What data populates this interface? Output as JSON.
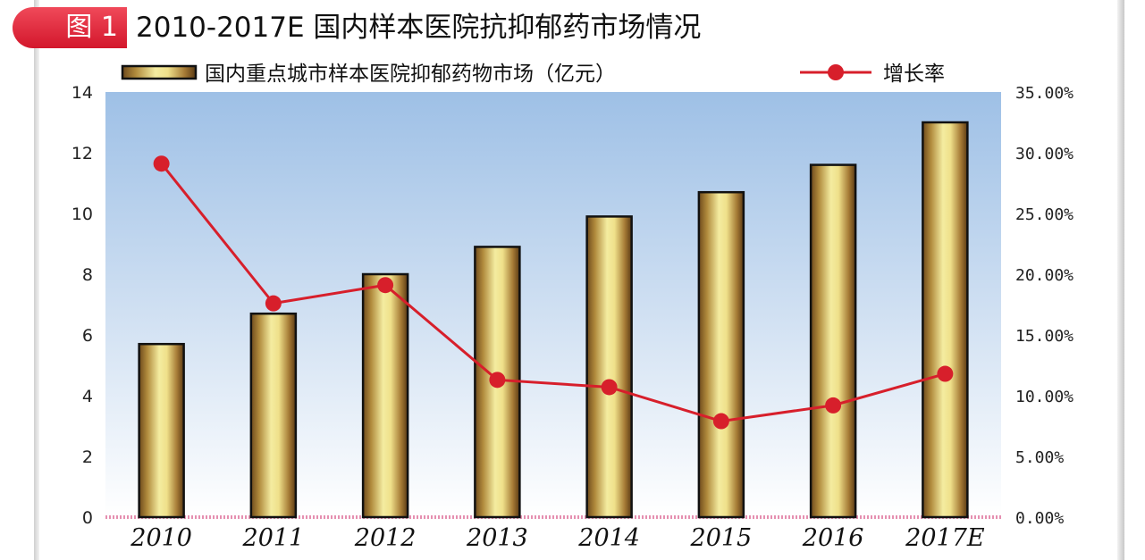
{
  "figure": {
    "badge": "图 1",
    "title": "2010-2017E 国内样本医院抗抑郁药市场情况"
  },
  "colors": {
    "badge_red": "#e0263a",
    "line_red": "#d71f2b",
    "bar_light": "#f4eca0",
    "bar_dark": "#6e4a1c",
    "plot_top": "#9ec0e6",
    "plot_bottom": "#ffffff"
  },
  "chart_data": {
    "type": "bar",
    "categories": [
      "2010",
      "2011",
      "2012",
      "2013",
      "2014",
      "2015",
      "2016",
      "2017E"
    ],
    "series": [
      {
        "name": "国内重点城市样本医院抑郁药物市场（亿元）",
        "type": "bar",
        "axis": "left",
        "values": [
          5.7,
          6.7,
          8.0,
          8.9,
          9.9,
          10.7,
          11.6,
          13.0
        ]
      },
      {
        "name": "增长率",
        "type": "line",
        "axis": "right",
        "values": [
          0.291,
          0.176,
          0.191,
          0.113,
          0.107,
          0.079,
          0.092,
          0.118
        ]
      }
    ],
    "ylim_left": [
      0,
      14
    ],
    "yticks_left": [
      "0",
      "2",
      "4",
      "6",
      "8",
      "10",
      "12",
      "14"
    ],
    "ylim_right": [
      0,
      0.35
    ],
    "yticks_right": [
      "0.00%",
      "5.00%",
      "10.00%",
      "15.00%",
      "20.00%",
      "25.00%",
      "30.00%",
      "35.00%"
    ],
    "grid": false,
    "legend": "top"
  }
}
